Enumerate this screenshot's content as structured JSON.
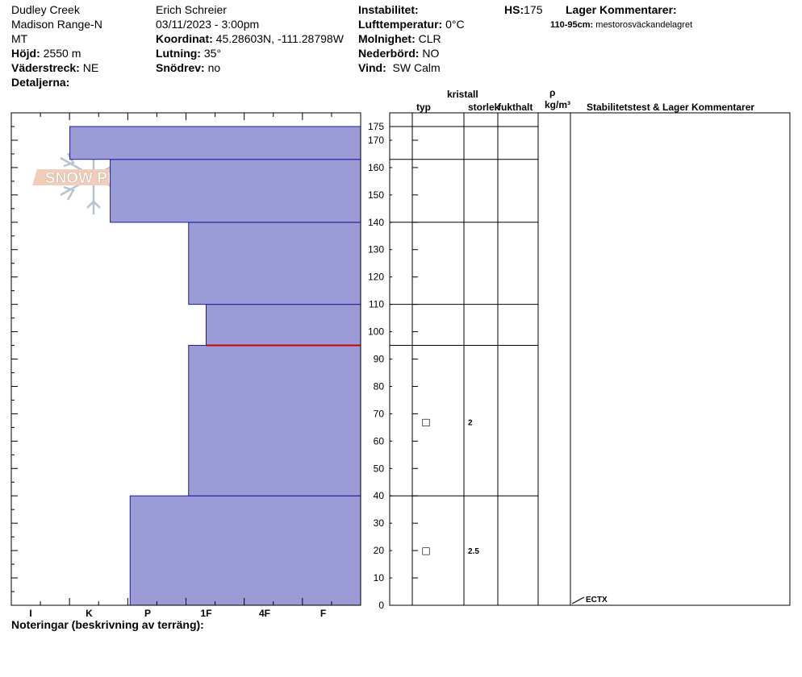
{
  "header": {
    "location": "Dudley Creek",
    "range": "Madison Range-N",
    "state": "MT",
    "elevation_label": "Höjd:",
    "elevation": "2550 m",
    "aspect_label": "Väderstreck:",
    "aspect": "NE",
    "details_label": "Detaljerna:",
    "observer": "Erich  Schreier",
    "datetime": "03/11/2023 - 3:00pm",
    "coord_label": "Koordinat:",
    "coord": "45.28603N, -111.28798W",
    "slope_label": "Lutning:",
    "slope": "35°",
    "drift_label": "Snödrev:",
    "drift": "no",
    "instability_label": "Instabilitet:",
    "instability": "",
    "airtemp_label": "Lufttemperatur:",
    "airtemp": "0°C",
    "sky_label": "Molnighet:",
    "sky": "CLR",
    "precip_label": "Nederbörd:",
    "precip": "NO",
    "wind_label": "Vind:",
    "wind": "SW Calm",
    "hs_label": "HS:",
    "hs": "175",
    "layer_comments_label": "Lager Kommentarer:",
    "layer_comment_range": "110-95cm:",
    "layer_comment_text": "mestorosväckandelagret"
  },
  "columns": {
    "crystal": "kristall",
    "type": "typ",
    "size": "storlek",
    "moisture": "fukthalt",
    "rho": "ρ",
    "density_unit": "kg/m³",
    "stability": "Stabilitetstest & Lager Kommentarer"
  },
  "logo": "SNOW PILOT",
  "footer": {
    "notes_label": "Noteringar (beskrivning av terräng):"
  },
  "colors": {
    "layer_fill": "#9b9bd6",
    "layer_stroke": "#1a1aa0",
    "weak_layer": "#cc0000"
  },
  "chart_data": {
    "type": "bar",
    "title": "",
    "x_categories": [
      "I",
      "K",
      "P",
      "1F",
      "4F",
      "F"
    ],
    "ylim": [
      0,
      175
    ],
    "y_ticks": [
      0,
      10,
      20,
      30,
      40,
      50,
      60,
      70,
      80,
      90,
      100,
      110,
      120,
      130,
      140,
      150,
      160,
      170,
      175
    ],
    "hardness_layers": [
      {
        "bottom": 0,
        "top": 40,
        "hardness_index": 1.7
      },
      {
        "bottom": 40,
        "top": 95,
        "hardness_index": 2.7
      },
      {
        "bottom": 95,
        "top": 110,
        "hardness_index": 3.0
      },
      {
        "bottom": 110,
        "top": 140,
        "hardness_index": 2.7
      },
      {
        "bottom": 140,
        "top": 163,
        "hardness_index": 1.36
      },
      {
        "bottom": 163,
        "top": 175,
        "hardness_index": 0.67
      }
    ],
    "layer_boundaries": [
      40,
      95,
      110,
      140,
      163,
      175
    ],
    "weak_layer": 95,
    "grain_observations": [
      {
        "height": 67,
        "form": "□",
        "size": "2"
      },
      {
        "height": 20,
        "form": "□",
        "size": "2.5"
      }
    ],
    "stability_tests": [
      {
        "height": 0,
        "label": "ECTX"
      }
    ]
  }
}
